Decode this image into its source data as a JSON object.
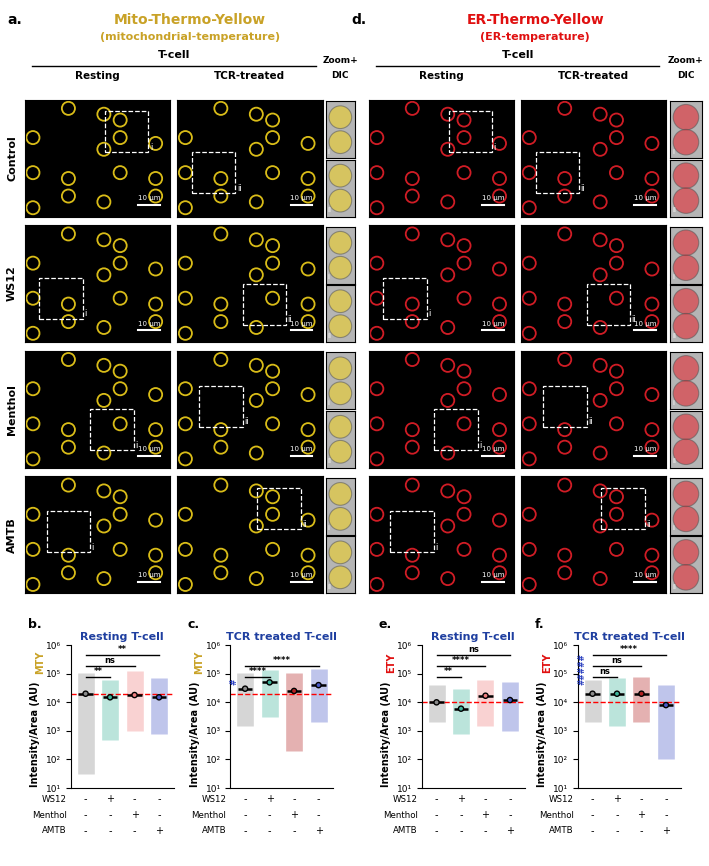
{
  "figure": {
    "rows": [
      "Control",
      "WS12",
      "Menthol",
      "AMTB"
    ],
    "panels": [
      {
        "letter": "a.",
        "title": "Mito-Thermo-Yellow",
        "subtitle": "(mitochondrial-temperature)",
        "color": "#c9a227",
        "stain_color": "#f2d21b",
        "header": "T-cell",
        "columns": [
          "Resting",
          "TCR-treated"
        ],
        "zoom_header": [
          "Zoom+",
          "DIC"
        ],
        "scale_bar": "10 μm",
        "insets": [
          "i",
          "ii"
        ]
      },
      {
        "letter": "d.",
        "title": "ER-Thermo-Yellow",
        "subtitle": "(ER-temperature)",
        "color": "#e01010",
        "stain_color": "#e8202a",
        "header": "T-cell",
        "columns": [
          "Resting",
          "TCR-treated"
        ],
        "zoom_header": [
          "Zoom+",
          "DIC"
        ],
        "scale_bar": "10 μm",
        "insets": [
          "i",
          "ii"
        ]
      }
    ]
  },
  "chart_data": [
    {
      "type": "scatter",
      "letter": "b.",
      "title": "Resting T-cell",
      "ylabel": "Intensity/Area (AU)",
      "ylabel_tag": "MTY",
      "tag_color": "#c9a227",
      "log": "y",
      "ylim": [
        10,
        1000000
      ],
      "yticks": [
        {
          "value": 10,
          "label": "10¹"
        },
        {
          "value": 100,
          "label": "10²"
        },
        {
          "value": 1000,
          "label": "10³"
        },
        {
          "value": 10000,
          "label": "10⁴"
        },
        {
          "value": 100000,
          "label": "10⁵"
        },
        {
          "value": 1000000,
          "label": "10⁶"
        }
      ],
      "tick_labels": "y",
      "marker": "o",
      "values": [
        20000,
        15000,
        18000,
        15000
      ],
      "ranges": [
        [
          30,
          110000
        ],
        [
          500,
          60000
        ],
        [
          1000,
          120000
        ],
        [
          800,
          70000
        ]
      ],
      "colors": [
        "#8a8a8a",
        "#3cb49a",
        "#f08080",
        "#4a5ac8"
      ],
      "reference": 20000,
      "conditions": [
        {
          "label": "WS12",
          "signs": [
            "-",
            "+",
            "-",
            "-"
          ]
        },
        {
          "label": "Menthol",
          "signs": [
            "-",
            "-",
            "+",
            "-"
          ]
        },
        {
          "label": "AMTB",
          "signs": [
            "-",
            "-",
            "-",
            "+"
          ]
        }
      ],
      "comparisons": [
        {
          "from": 0,
          "to": 1,
          "label": "**"
        },
        {
          "from": 0,
          "to": 2,
          "label": "ns"
        },
        {
          "from": 0,
          "to": 3,
          "label": "**"
        }
      ]
    },
    {
      "type": "scatter",
      "letter": "c.",
      "title": "TCR treated T-cell",
      "ylabel": "Intensity/Area (AU)",
      "ylabel_tag": "MTY",
      "tag_color": "#c9a227",
      "log": "y",
      "ylim": [
        10,
        1000000
      ],
      "yticks": [
        {
          "value": 10,
          "label": "10¹"
        },
        {
          "value": 100,
          "label": "10²"
        },
        {
          "value": 1000,
          "label": "10³"
        },
        {
          "value": 10000,
          "label": "10⁴"
        },
        {
          "value": 100000,
          "label": "10⁵"
        },
        {
          "value": 1000000,
          "label": "10⁶"
        }
      ],
      "tick_labels": "y",
      "marker": "o",
      "values": [
        30000,
        50000,
        25000,
        40000
      ],
      "ranges": [
        [
          1500,
          110000
        ],
        [
          3000,
          130000
        ],
        [
          200,
          110000
        ],
        [
          2000,
          150000
        ]
      ],
      "colors": [
        "#8a8a8a",
        "#3cb49a",
        "#b22222",
        "#4a5ac8"
      ],
      "reference": 20000,
      "flag": "#",
      "flag_color": "#2a3fbf",
      "conditions": [
        {
          "label": "WS12",
          "signs": [
            "-",
            "+",
            "-",
            "-"
          ]
        },
        {
          "label": "Menthol",
          "signs": [
            "-",
            "-",
            "+",
            "-"
          ]
        },
        {
          "label": "AMTB",
          "signs": [
            "-",
            "-",
            "-",
            "+"
          ]
        }
      ],
      "comparisons": [
        {
          "from": 0,
          "to": 1,
          "label": "****"
        },
        {
          "from": 0,
          "to": 3,
          "label": "****"
        }
      ]
    },
    {
      "type": "scatter",
      "letter": "e.",
      "title": "Resting T-cell",
      "ylabel": "Intensity/Area (AU)",
      "ylabel_tag": "ETY",
      "tag_color": "#e01010",
      "log": "y",
      "ylim": [
        10,
        1000000
      ],
      "yticks": [
        {
          "value": 10,
          "label": "10¹"
        },
        {
          "value": 100,
          "label": "10²"
        },
        {
          "value": 1000,
          "label": "10³"
        },
        {
          "value": 10000,
          "label": "10⁴"
        },
        {
          "value": 100000,
          "label": "10⁵"
        },
        {
          "value": 1000000,
          "label": "10⁶"
        }
      ],
      "tick_labels": "y",
      "marker": "o",
      "values": [
        10000,
        6000,
        17000,
        12000
      ],
      "ranges": [
        [
          2000,
          40000
        ],
        [
          800,
          30000
        ],
        [
          1500,
          60000
        ],
        [
          1000,
          50000
        ]
      ],
      "colors": [
        "#8a8a8a",
        "#3cb49a",
        "#f08080",
        "#4a5ac8"
      ],
      "reference": 10000,
      "conditions": [
        {
          "label": "WS12",
          "signs": [
            "-",
            "+",
            "-",
            "-"
          ]
        },
        {
          "label": "Menthol",
          "signs": [
            "-",
            "-",
            "+",
            "-"
          ]
        },
        {
          "label": "AMTB",
          "signs": [
            "-",
            "-",
            "-",
            "+"
          ]
        }
      ],
      "comparisons": [
        {
          "from": 0,
          "to": 1,
          "label": "**"
        },
        {
          "from": 0,
          "to": 2,
          "label": "****"
        },
        {
          "from": 0,
          "to": 3,
          "label": "ns"
        }
      ]
    },
    {
      "type": "scatter",
      "letter": "f.",
      "title": "TCR treated T-cell",
      "ylabel": "Intensity/Area (AU)",
      "ylabel_tag": "ETY",
      "tag_color": "#e01010",
      "log": "y",
      "ylim": [
        10,
        1000000
      ],
      "yticks": [
        {
          "value": 10,
          "label": "10¹"
        },
        {
          "value": 100,
          "label": "10²"
        },
        {
          "value": 1000,
          "label": "10³"
        },
        {
          "value": 10000,
          "label": "10⁴"
        },
        {
          "value": 100000,
          "label": "10⁵"
        },
        {
          "value": 1000000,
          "label": "10⁶"
        }
      ],
      "tick_labels": "y",
      "marker": "o",
      "values": [
        20000,
        20000,
        20000,
        8000
      ],
      "ranges": [
        [
          2000,
          60000
        ],
        [
          1500,
          70000
        ],
        [
          2000,
          80000
        ],
        [
          100,
          40000
        ]
      ],
      "colors": [
        "#8a8a8a",
        "#3cb49a",
        "#b22222",
        "#4a5ac8"
      ],
      "reference": 10000,
      "flag": "#####",
      "flag_color": "#2a3fbf",
      "conditions": [
        {
          "label": "WS12",
          "signs": [
            "-",
            "+",
            "-",
            "-"
          ]
        },
        {
          "label": "Menthol",
          "signs": [
            "-",
            "-",
            "+",
            "-"
          ]
        },
        {
          "label": "AMTB",
          "signs": [
            "-",
            "-",
            "-",
            "+"
          ]
        }
      ],
      "comparisons": [
        {
          "from": 0,
          "to": 1,
          "label": "ns"
        },
        {
          "from": 0,
          "to": 2,
          "label": "ns"
        },
        {
          "from": 0,
          "to": 3,
          "label": "****"
        }
      ]
    }
  ]
}
